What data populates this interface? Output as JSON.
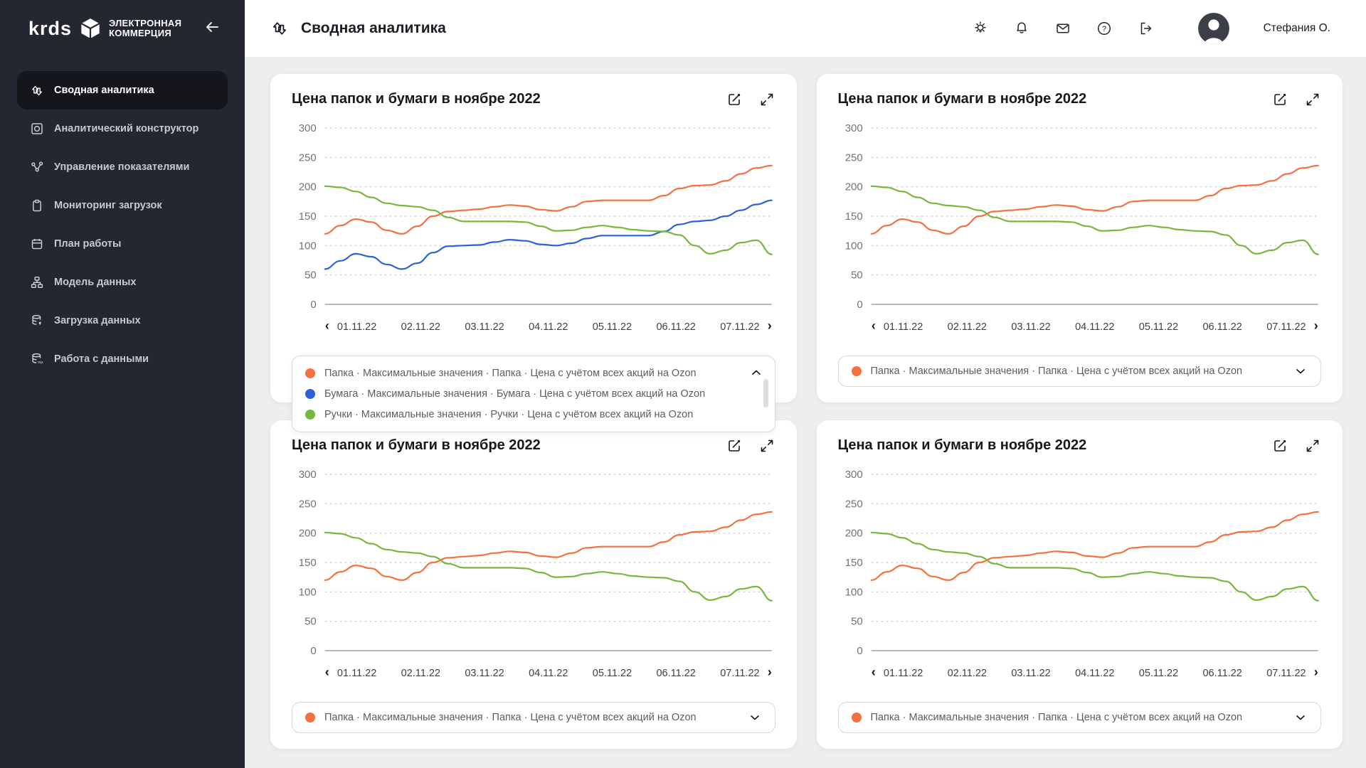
{
  "logo": {
    "brand": "krds",
    "line1": "ЭЛЕКТРОННАЯ",
    "line2": "КОММЕРЦИЯ"
  },
  "sidebar": {
    "items": [
      {
        "label": "Сводная аналитика",
        "icon": "arrows-up-down-icon",
        "active": true
      },
      {
        "label": "Аналитический конструктор",
        "icon": "frame-circle-icon",
        "active": false
      },
      {
        "label": "Управление показателями",
        "icon": "nodes-icon",
        "active": false
      },
      {
        "label": "Мониторинг загрузок",
        "icon": "clipboard-icon",
        "active": false
      },
      {
        "label": "План работы",
        "icon": "calendar-icon",
        "active": false
      },
      {
        "label": "Модель данных",
        "icon": "sitemap-icon",
        "active": false
      },
      {
        "label": "Загрузка данных",
        "icon": "database-upload-icon",
        "active": false
      },
      {
        "label": "Работа с данными",
        "icon": "database-sql-icon",
        "active": false
      }
    ],
    "sql_badge": "SQL"
  },
  "header": {
    "title": "Сводная аналитика",
    "help_glyph": "?",
    "user": "Стефания О."
  },
  "legend": {
    "items": [
      {
        "label": "Папка · Максимальные значения · Папка · Цена с учётом всех акций на Ozon",
        "color": "#F4703D"
      },
      {
        "label": "Бумага · Максимальные значения · Бумага · Цена с учётом всех акций на Ozon",
        "color": "#2B62DB"
      },
      {
        "label": "Ручки · Максимальные значения · Ручки · Цена с учётом всех акций на Ozon",
        "color": "#77B73A"
      }
    ]
  },
  "colors": {
    "accent_orange": "#F4703D",
    "accent_blue": "#2B62DB",
    "accent_green": "#77B73A",
    "sidebar_bg": "#242631",
    "page_bg": "#EDEEF0"
  },
  "chart_data": [
    {
      "type": "line",
      "title": "Цена папок и бумаги в ноябре 2022",
      "ylim": [
        0,
        300
      ],
      "yticks": [
        0,
        50,
        100,
        150,
        200,
        250,
        300
      ],
      "x_labels": [
        "01.11.22",
        "02.11.22",
        "03.11.22",
        "04.11.22",
        "05.11.22",
        "06.11.22",
        "07.11.22"
      ],
      "prev_label": "‹",
      "next_label": "›",
      "grid": "dashed",
      "legend_state": "expanded",
      "series": [
        {
          "name": "Папка",
          "color": "#F4703D",
          "values": [
            120,
            134,
            145,
            140,
            126,
            120,
            133,
            150,
            158,
            160,
            162,
            166,
            169,
            167,
            161,
            159,
            166,
            175,
            177,
            177,
            177,
            177,
            185,
            197,
            202,
            203,
            210,
            222,
            232,
            236
          ]
        },
        {
          "name": "Бумага",
          "color": "#2B62DB",
          "values": [
            60,
            74,
            86,
            81,
            68,
            60,
            70,
            88,
            99,
            100,
            101,
            106,
            110,
            108,
            102,
            100,
            104,
            112,
            117,
            117,
            117,
            117,
            124,
            136,
            141,
            143,
            150,
            160,
            170,
            177
          ]
        },
        {
          "name": "Ручки",
          "color": "#77B73A",
          "values": [
            201,
            199,
            192,
            182,
            172,
            168,
            166,
            160,
            148,
            141,
            141,
            141,
            141,
            140,
            133,
            125,
            126,
            131,
            134,
            131,
            127,
            125,
            124,
            118,
            100,
            86,
            92,
            105,
            109,
            85
          ]
        }
      ]
    },
    {
      "type": "line",
      "title": "Цена папок и бумаги в ноябре 2022",
      "ylim": [
        0,
        300
      ],
      "yticks": [
        0,
        50,
        100,
        150,
        200,
        250,
        300
      ],
      "x_labels": [
        "01.11.22",
        "02.11.22",
        "03.11.22",
        "04.11.22",
        "05.11.22",
        "06.11.22",
        "07.11.22"
      ],
      "prev_label": "‹",
      "next_label": "›",
      "grid": "dashed",
      "legend_state": "collapsed",
      "series": [
        {
          "name": "Папка",
          "color": "#F4703D",
          "values": [
            120,
            134,
            145,
            140,
            126,
            120,
            133,
            150,
            158,
            160,
            162,
            166,
            169,
            167,
            161,
            159,
            166,
            175,
            177,
            177,
            177,
            177,
            185,
            197,
            202,
            203,
            210,
            222,
            232,
            236
          ]
        },
        {
          "name": "Ручки",
          "color": "#77B73A",
          "values": [
            201,
            199,
            192,
            182,
            172,
            168,
            166,
            160,
            148,
            141,
            141,
            141,
            141,
            140,
            133,
            125,
            126,
            131,
            134,
            131,
            127,
            125,
            124,
            118,
            100,
            86,
            92,
            105,
            109,
            85
          ]
        }
      ]
    },
    {
      "type": "line",
      "title": "Цена папок и бумаги в ноябре 2022",
      "ylim": [
        0,
        300
      ],
      "yticks": [
        0,
        50,
        100,
        150,
        200,
        250,
        300
      ],
      "x_labels": [
        "01.11.22",
        "02.11.22",
        "03.11.22",
        "04.11.22",
        "05.11.22",
        "06.11.22",
        "07.11.22"
      ],
      "prev_label": "‹",
      "next_label": "›",
      "grid": "dashed",
      "legend_state": "collapsed",
      "series": [
        {
          "name": "Папка",
          "color": "#F4703D",
          "values": [
            120,
            134,
            145,
            140,
            126,
            120,
            133,
            150,
            158,
            160,
            162,
            166,
            169,
            167,
            161,
            159,
            166,
            175,
            177,
            177,
            177,
            177,
            185,
            197,
            202,
            203,
            210,
            222,
            232,
            236
          ]
        },
        {
          "name": "Ручки",
          "color": "#77B73A",
          "values": [
            201,
            199,
            192,
            182,
            172,
            168,
            166,
            160,
            148,
            141,
            141,
            141,
            141,
            140,
            133,
            125,
            126,
            131,
            134,
            131,
            127,
            125,
            124,
            118,
            100,
            86,
            92,
            105,
            109,
            85
          ]
        }
      ]
    },
    {
      "type": "line",
      "title": "Цена папок и бумаги в ноябре 2022",
      "ylim": [
        0,
        300
      ],
      "yticks": [
        0,
        50,
        100,
        150,
        200,
        250,
        300
      ],
      "x_labels": [
        "01.11.22",
        "02.11.22",
        "03.11.22",
        "04.11.22",
        "05.11.22",
        "06.11.22",
        "07.11.22"
      ],
      "prev_label": "‹",
      "next_label": "›",
      "grid": "dashed",
      "legend_state": "collapsed",
      "series": [
        {
          "name": "Папка",
          "color": "#F4703D",
          "values": [
            120,
            134,
            145,
            140,
            126,
            120,
            133,
            150,
            158,
            160,
            162,
            166,
            169,
            167,
            161,
            159,
            166,
            175,
            177,
            177,
            177,
            177,
            185,
            197,
            202,
            203,
            210,
            222,
            232,
            236
          ]
        },
        {
          "name": "Ручки",
          "color": "#77B73A",
          "values": [
            201,
            199,
            192,
            182,
            172,
            168,
            166,
            160,
            148,
            141,
            141,
            141,
            141,
            140,
            133,
            125,
            126,
            131,
            134,
            131,
            127,
            125,
            124,
            118,
            100,
            86,
            92,
            105,
            109,
            85
          ]
        }
      ]
    }
  ]
}
